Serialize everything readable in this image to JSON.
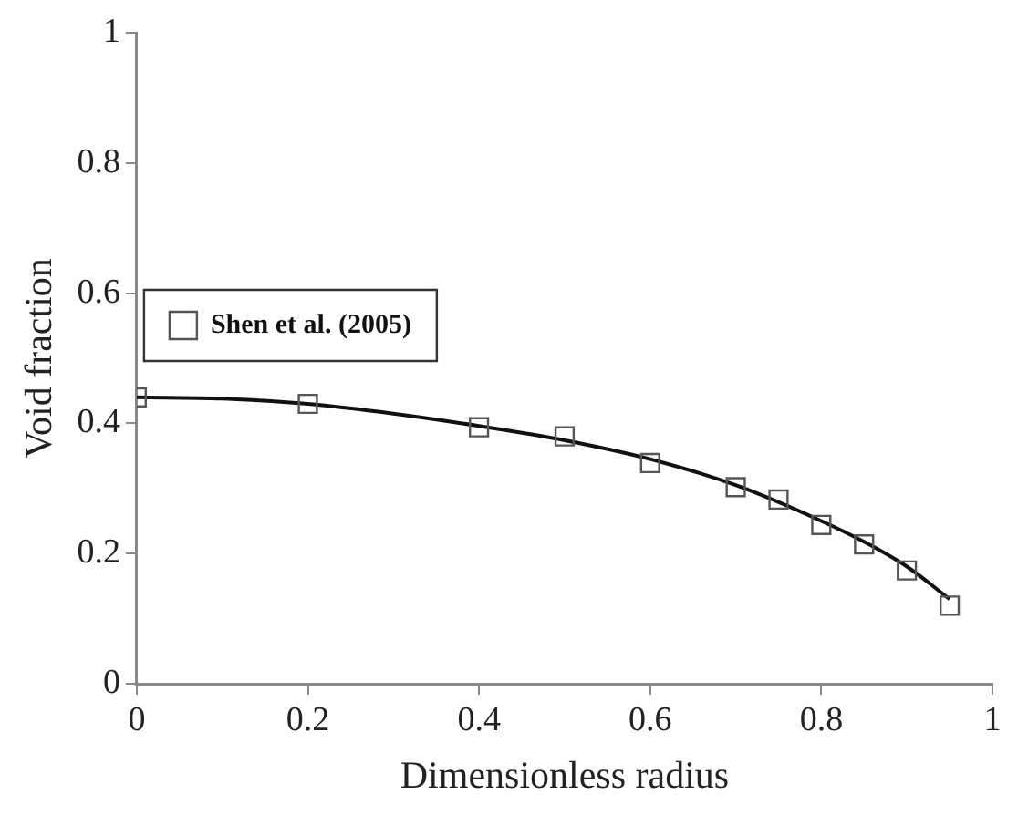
{
  "chart_data": {
    "type": "scatter",
    "xlabel": "Dimensionless radius",
    "ylabel": "Void fraction",
    "xlim": [
      0,
      1
    ],
    "ylim": [
      0,
      1
    ],
    "xticks": [
      0,
      0.2,
      0.4,
      0.6,
      0.8,
      1
    ],
    "yticks": [
      0,
      0.2,
      0.4,
      0.6,
      0.8,
      1
    ],
    "grid": false,
    "legend": "top",
    "series": [
      {
        "name": "Shen et al. (2005)",
        "marker": "square",
        "color": "#555555",
        "x": [
          0,
          0.2,
          0.4,
          0.5,
          0.6,
          0.7,
          0.75,
          0.8,
          0.85,
          0.9,
          0.95
        ],
        "values": [
          0.44,
          0.43,
          0.394,
          0.38,
          0.339,
          0.302,
          0.283,
          0.244,
          0.214,
          0.174,
          0.12
        ]
      },
      {
        "type": "line",
        "marker": "none",
        "color": "#111111",
        "x": [
          0,
          0.1,
          0.2,
          0.3,
          0.4,
          0.5,
          0.6,
          0.7,
          0.8,
          0.85,
          0.9,
          0.95
        ],
        "values": [
          0.44,
          0.438,
          0.43,
          0.415,
          0.396,
          0.374,
          0.345,
          0.305,
          0.25,
          0.218,
          0.18,
          0.13
        ]
      }
    ]
  }
}
